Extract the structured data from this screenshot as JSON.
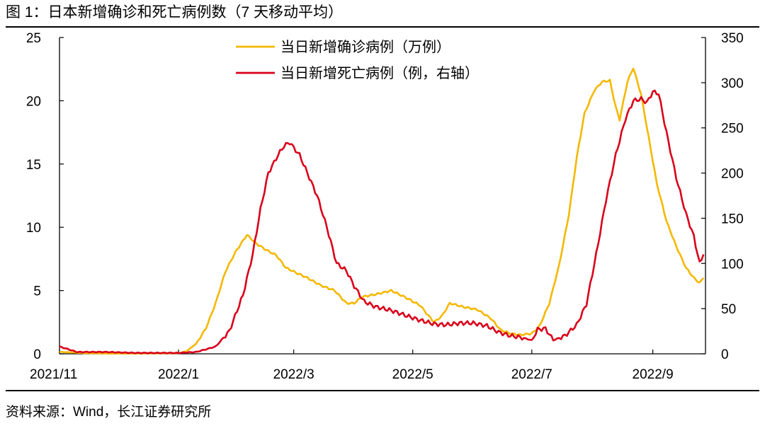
{
  "figure": {
    "title": "图 1：日本新增确诊和死亡病例数（7 天移动平均）",
    "source": "资料来源：Wind，长江证券研究所"
  },
  "chart_data": {
    "type": "line",
    "x_ticks": [
      "2021/11",
      "2022/1",
      "2022/3",
      "2022/5",
      "2022/7",
      "2022/9"
    ],
    "y_left": {
      "ylim": [
        0,
        25
      ],
      "ticks": [
        0,
        5,
        10,
        15,
        20,
        25
      ]
    },
    "y_right": {
      "ylim": [
        0,
        350
      ],
      "ticks": [
        0,
        50,
        100,
        150,
        200,
        250,
        300,
        350
      ]
    },
    "legend_position": "top-center",
    "series": [
      {
        "name": "当日新增确诊病例（万例）",
        "axis": "left",
        "color": "#F5B800",
        "points": [
          [
            "2021-11-01",
            0.15
          ],
          [
            "2021-11-15",
            0.05
          ],
          [
            "2021-12-01",
            0.02
          ],
          [
            "2021-12-15",
            0.03
          ],
          [
            "2022-01-01",
            0.05
          ],
          [
            "2022-01-05",
            0.2
          ],
          [
            "2022-01-10",
            0.8
          ],
          [
            "2022-01-15",
            2.0
          ],
          [
            "2022-01-20",
            4.0
          ],
          [
            "2022-01-25",
            6.5
          ],
          [
            "2022-01-30",
            8.0
          ],
          [
            "2022-02-05",
            9.4
          ],
          [
            "2022-02-10",
            8.7
          ],
          [
            "2022-02-15",
            8.2
          ],
          [
            "2022-02-20",
            7.8
          ],
          [
            "2022-02-25",
            6.8
          ],
          [
            "2022-03-01",
            6.5
          ],
          [
            "2022-03-08",
            6.0
          ],
          [
            "2022-03-15",
            5.4
          ],
          [
            "2022-03-22",
            5.0
          ],
          [
            "2022-03-28",
            4.0
          ],
          [
            "2022-04-01",
            4.0
          ],
          [
            "2022-04-05",
            4.5
          ],
          [
            "2022-04-12",
            4.7
          ],
          [
            "2022-04-20",
            5.0
          ],
          [
            "2022-04-28",
            4.4
          ],
          [
            "2022-05-05",
            3.8
          ],
          [
            "2022-05-08",
            3.2
          ],
          [
            "2022-05-12",
            2.5
          ],
          [
            "2022-05-16",
            3.0
          ],
          [
            "2022-05-20",
            4.0
          ],
          [
            "2022-05-27",
            3.7
          ],
          [
            "2022-06-03",
            3.5
          ],
          [
            "2022-06-10",
            2.8
          ],
          [
            "2022-06-15",
            1.9
          ],
          [
            "2022-06-20",
            1.6
          ],
          [
            "2022-06-25",
            1.5
          ],
          [
            "2022-07-01",
            1.6
          ],
          [
            "2022-07-05",
            2.2
          ],
          [
            "2022-07-10",
            4.0
          ],
          [
            "2022-07-15",
            7.0
          ],
          [
            "2022-07-20",
            11.0
          ],
          [
            "2022-07-24",
            15.5
          ],
          [
            "2022-07-28",
            19.0
          ],
          [
            "2022-08-02",
            20.8
          ],
          [
            "2022-08-06",
            21.5
          ],
          [
            "2022-08-10",
            21.6
          ],
          [
            "2022-08-13",
            19.5
          ],
          [
            "2022-08-15",
            18.5
          ],
          [
            "2022-08-19",
            21.5
          ],
          [
            "2022-08-22",
            22.6
          ],
          [
            "2022-08-26",
            20.5
          ],
          [
            "2022-08-30",
            17.0
          ],
          [
            "2022-09-03",
            13.5
          ],
          [
            "2022-09-08",
            10.5
          ],
          [
            "2022-09-13",
            8.5
          ],
          [
            "2022-09-18",
            6.8
          ],
          [
            "2022-09-22",
            6.0
          ],
          [
            "2022-09-25",
            5.6
          ],
          [
            "2022-09-27",
            6.0
          ]
        ]
      },
      {
        "name": "当日新增死亡病例（例，右轴）",
        "axis": "right",
        "color": "#D9001B",
        "points": [
          [
            "2021-11-01",
            8
          ],
          [
            "2021-11-10",
            2
          ],
          [
            "2021-11-25",
            2
          ],
          [
            "2021-12-10",
            1
          ],
          [
            "2022-01-01",
            1
          ],
          [
            "2022-01-10",
            2
          ],
          [
            "2022-01-20",
            8
          ],
          [
            "2022-01-27",
            25
          ],
          [
            "2022-02-03",
            65
          ],
          [
            "2022-02-08",
            110
          ],
          [
            "2022-02-12",
            160
          ],
          [
            "2022-02-16",
            200
          ],
          [
            "2022-02-21",
            220
          ],
          [
            "2022-02-24",
            230
          ],
          [
            "2022-02-27",
            234
          ],
          [
            "2022-03-01",
            228
          ],
          [
            "2022-03-04",
            220
          ],
          [
            "2022-03-08",
            200
          ],
          [
            "2022-03-13",
            175
          ],
          [
            "2022-03-18",
            140
          ],
          [
            "2022-03-23",
            100
          ],
          [
            "2022-03-28",
            92
          ],
          [
            "2022-04-01",
            75
          ],
          [
            "2022-04-06",
            58
          ],
          [
            "2022-04-12",
            52
          ],
          [
            "2022-04-20",
            48
          ],
          [
            "2022-04-28",
            42
          ],
          [
            "2022-05-05",
            37
          ],
          [
            "2022-05-12",
            33
          ],
          [
            "2022-05-18",
            32
          ],
          [
            "2022-05-25",
            34
          ],
          [
            "2022-06-01",
            34
          ],
          [
            "2022-06-08",
            31
          ],
          [
            "2022-06-14",
            24
          ],
          [
            "2022-06-20",
            20
          ],
          [
            "2022-06-26",
            18
          ],
          [
            "2022-07-01",
            15
          ],
          [
            "2022-07-04",
            27
          ],
          [
            "2022-07-08",
            28
          ],
          [
            "2022-07-12",
            15
          ],
          [
            "2022-07-18",
            20
          ],
          [
            "2022-07-24",
            32
          ],
          [
            "2022-07-29",
            55
          ],
          [
            "2022-08-03",
            110
          ],
          [
            "2022-08-08",
            170
          ],
          [
            "2022-08-13",
            220
          ],
          [
            "2022-08-18",
            260
          ],
          [
            "2022-08-22",
            280
          ],
          [
            "2022-08-26",
            282
          ],
          [
            "2022-08-29",
            278
          ],
          [
            "2022-09-01",
            290
          ],
          [
            "2022-09-04",
            288
          ],
          [
            "2022-09-08",
            245
          ],
          [
            "2022-09-13",
            195
          ],
          [
            "2022-09-18",
            155
          ],
          [
            "2022-09-22",
            130
          ],
          [
            "2022-09-25",
            100
          ],
          [
            "2022-09-27",
            110
          ]
        ]
      }
    ]
  }
}
